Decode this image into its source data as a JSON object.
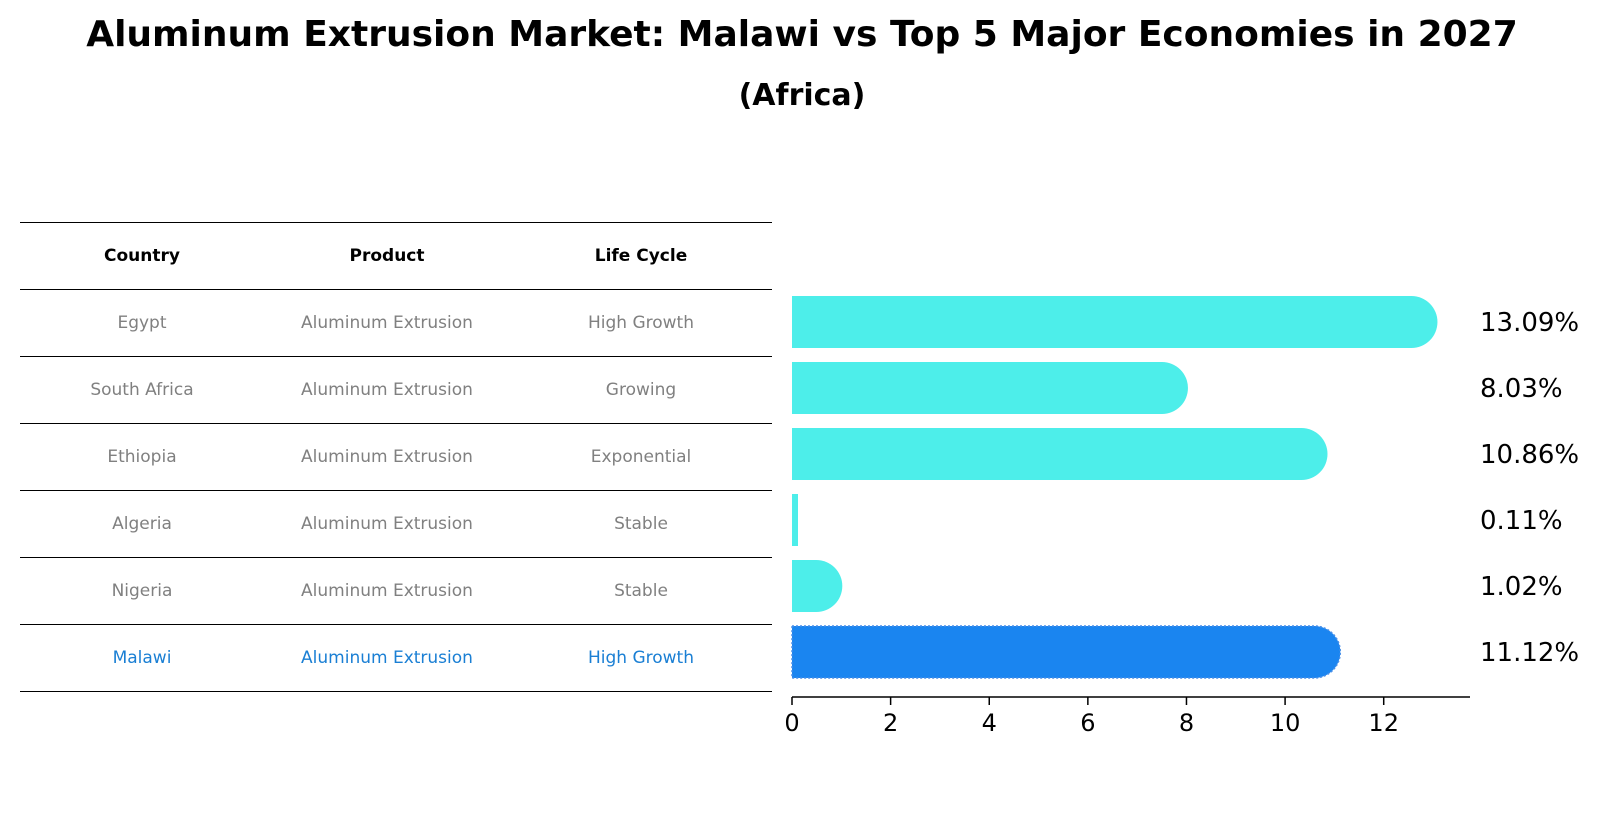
{
  "chart_data": {
    "type": "bar",
    "orientation": "horizontal",
    "title": "Aluminum Extrusion Market: Malawi vs Top 5 Major Economies in 2027",
    "subtitle": "(Africa)",
    "columns": [
      "Country",
      "Product",
      "Life Cycle"
    ],
    "rows": [
      {
        "country": "Egypt",
        "product": "Aluminum Extrusion",
        "life_cycle": "High Growth",
        "value": 13.09,
        "label": "13.09%",
        "highlight": false
      },
      {
        "country": "South Africa",
        "product": "Aluminum Extrusion",
        "life_cycle": "Growing",
        "value": 8.03,
        "label": "8.03%",
        "highlight": false
      },
      {
        "country": "Ethiopia",
        "product": "Aluminum Extrusion",
        "life_cycle": "Exponential",
        "value": 10.86,
        "label": "10.86%",
        "highlight": false
      },
      {
        "country": "Algeria",
        "product": "Aluminum Extrusion",
        "life_cycle": "Stable",
        "value": 0.11,
        "label": "0.11%",
        "highlight": false
      },
      {
        "country": "Nigeria",
        "product": "Aluminum Extrusion",
        "life_cycle": "Stable",
        "value": 1.02,
        "label": "1.02%",
        "highlight": false
      },
      {
        "country": "Malawi",
        "product": "Aluminum Extrusion",
        "life_cycle": "High Growth",
        "value": 11.12,
        "label": "11.12%",
        "highlight": true
      }
    ],
    "xticks": [
      0,
      2,
      4,
      6,
      8,
      10,
      12
    ],
    "xlim": [
      0,
      13.75
    ],
    "xlabel": "",
    "ylabel": "",
    "grid": false,
    "bar_color": "#4deeea",
    "highlight_color": "#1a85f0",
    "highlight_text_color": "#1a7fd4",
    "muted_text_color": "#808080"
  }
}
